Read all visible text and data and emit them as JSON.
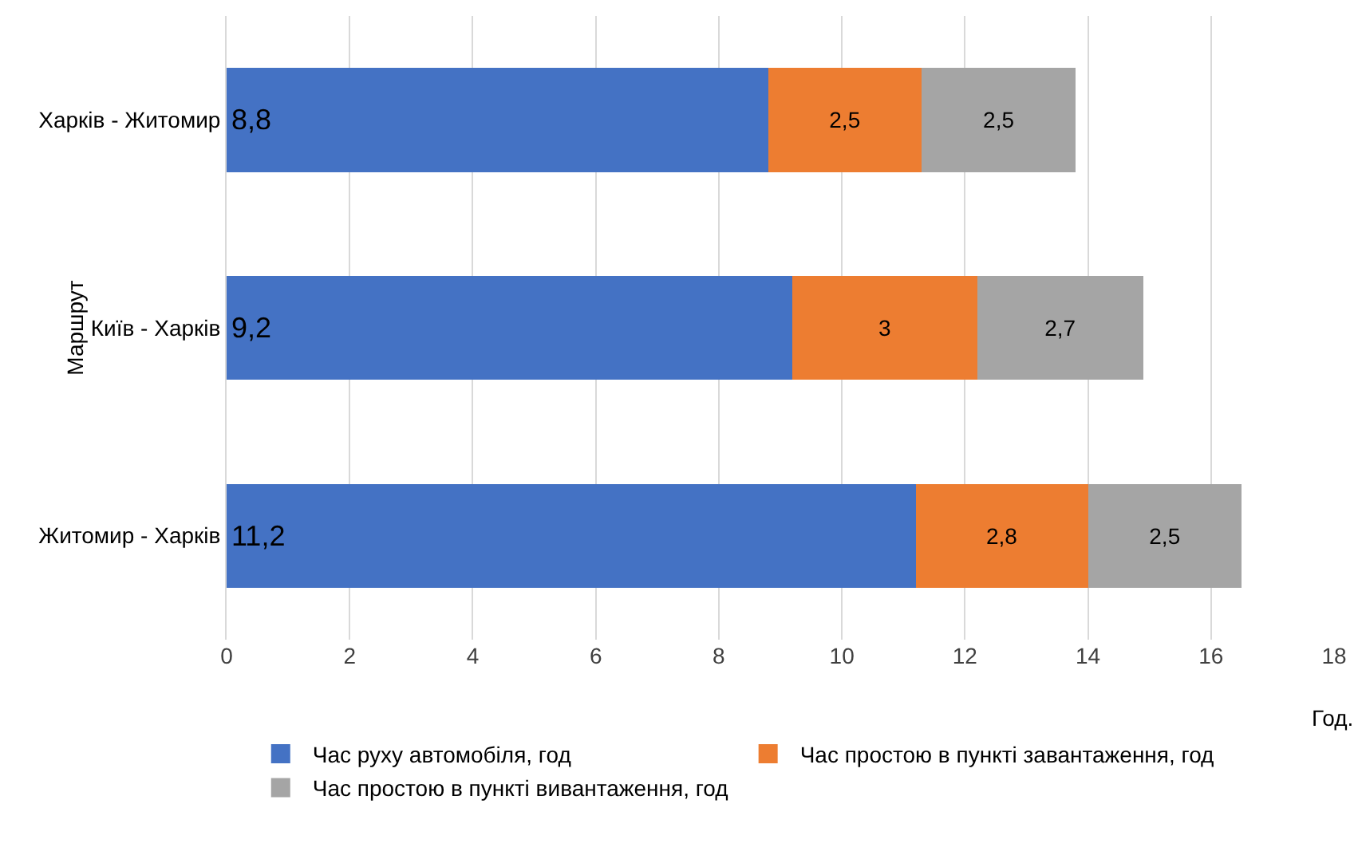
{
  "chart_data": {
    "type": "bar",
    "orientation": "horizontal",
    "stacked": true,
    "categories": [
      "Харків - Житомир",
      "Київ - Харків",
      "Житомир - Харків"
    ],
    "series": [
      {
        "name": "Час руху автомобіля, год",
        "color": "#4472c4",
        "values": [
          8.8,
          9.2,
          11.2
        ],
        "value_labels": [
          "8,8",
          "9,2",
          "11,2"
        ]
      },
      {
        "name": "Час простою в пункті завантаження, год",
        "color": "#ed7d31",
        "values": [
          2.5,
          3,
          2.8
        ],
        "value_labels": [
          "2,5",
          "3",
          "2,8"
        ]
      },
      {
        "name": "Час простою в пункті вивантаження, год",
        "color": "#a5a5a5",
        "values": [
          2.5,
          2.7,
          2.5
        ],
        "value_labels": [
          "2,5",
          "2,7",
          "2,5"
        ]
      }
    ],
    "xlim": [
      0,
      18
    ],
    "xticks": [
      0,
      2,
      4,
      6,
      8,
      10,
      12,
      14,
      16,
      18
    ],
    "xlabel": "Год.",
    "ylabel": "Маршрут",
    "grid": "x",
    "legend": "bottom"
  }
}
